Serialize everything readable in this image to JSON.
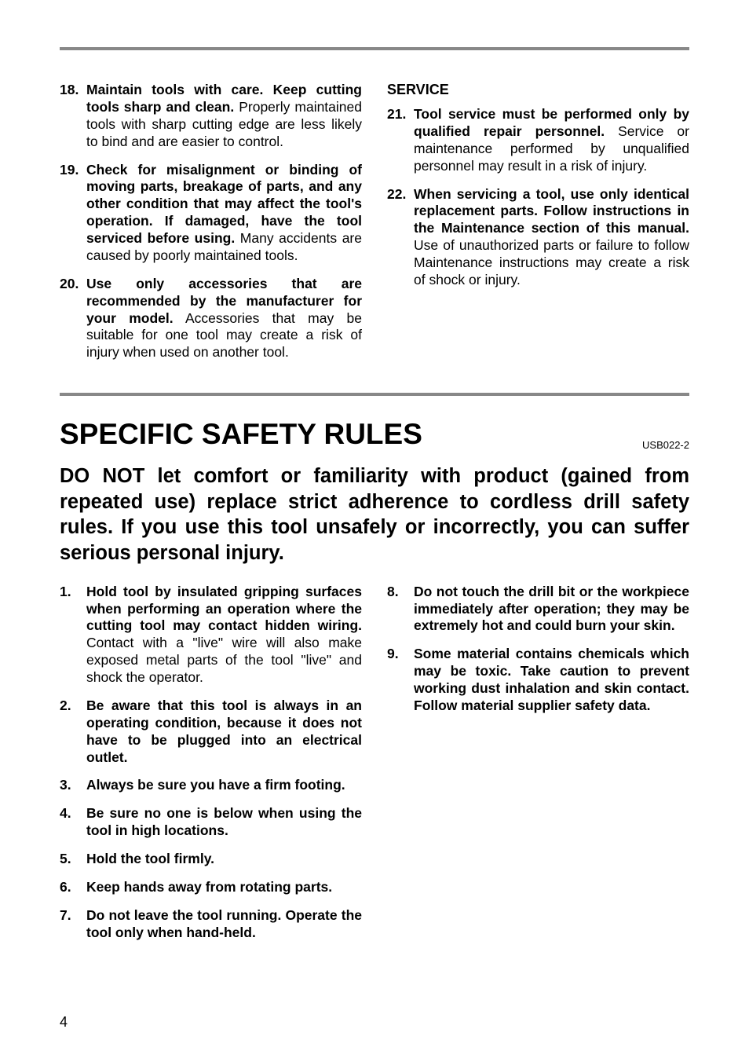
{
  "page_number": "4",
  "top_section": {
    "items": [
      {
        "num": "18.",
        "bold": "Maintain tools with care. Keep cutting tools sharp and clean.",
        "rest": " Properly maintained tools with sharp cutting edge are less likely to bind and are easier to control."
      },
      {
        "num": "19.",
        "bold": "Check for misalignment or binding of moving parts, breakage of parts, and any other condition that may affect the tool's operation. If damaged, have the tool serviced before using.",
        "rest": " Many accidents are caused by poorly maintained tools."
      },
      {
        "num": "20.",
        "bold": "Use only accessories that are recommended by the manufacturer for your model.",
        "rest": " Accessories that may be suitable for one tool may create a risk of injury when used on another tool."
      }
    ],
    "subhead": "SERVICE",
    "items2": [
      {
        "num": "21.",
        "bold": "Tool service must be performed only by qualified repair personnel.",
        "rest": " Service or maintenance performed by unqualified personnel may result in a risk of injury."
      },
      {
        "num": "22.",
        "bold": "When servicing a tool, use only identical replacement parts. Follow instructions in the Maintenance section of this manual.",
        "rest": " Use of unauthorized parts or failure to follow Maintenance instructions may create a risk of shock or injury."
      }
    ]
  },
  "section2": {
    "title": "SPECIFIC SAFETY RULES",
    "code": "USB022-2",
    "intro": "DO NOT let comfort or familiarity with product (gained from repeated use) replace strict adherence to cordless drill safety rules. If you use this tool unsafely or incorrectly, you can suffer serious personal injury.",
    "items_left": [
      {
        "num": "1.",
        "bold": "Hold tool by insulated gripping surfaces when performing an operation where the cutting tool may contact hidden wiring.",
        "rest": " Contact with a \"live\" wire will also make exposed metal parts of the tool \"live\" and shock the operator."
      },
      {
        "num": "2.",
        "bold": "Be aware that this tool is always in an operating condition, because it does not have to be plugged into an electrical outlet.",
        "rest": ""
      },
      {
        "num": "3.",
        "bold": "Always be sure you have a firm footing.",
        "rest": ""
      },
      {
        "num": "4.",
        "bold": "Be sure no one is below when using the tool in high locations.",
        "rest": ""
      },
      {
        "num": "5.",
        "bold": "Hold the tool firmly.",
        "rest": ""
      },
      {
        "num": "6.",
        "bold": "Keep hands away from rotating parts.",
        "rest": ""
      },
      {
        "num": "7.",
        "bold": "Do not leave the tool running. Operate the tool only when hand-held.",
        "rest": ""
      }
    ],
    "items_right": [
      {
        "num": "8.",
        "bold": "Do not touch the drill bit or the workpiece immediately after operation; they may be extremely hot and could burn your skin.",
        "rest": ""
      },
      {
        "num": "9.",
        "bold": "Some material contains chemicals which may be toxic. Take caution to prevent working dust inhalation and skin contact. Follow material supplier safety data.",
        "rest": ""
      }
    ]
  }
}
